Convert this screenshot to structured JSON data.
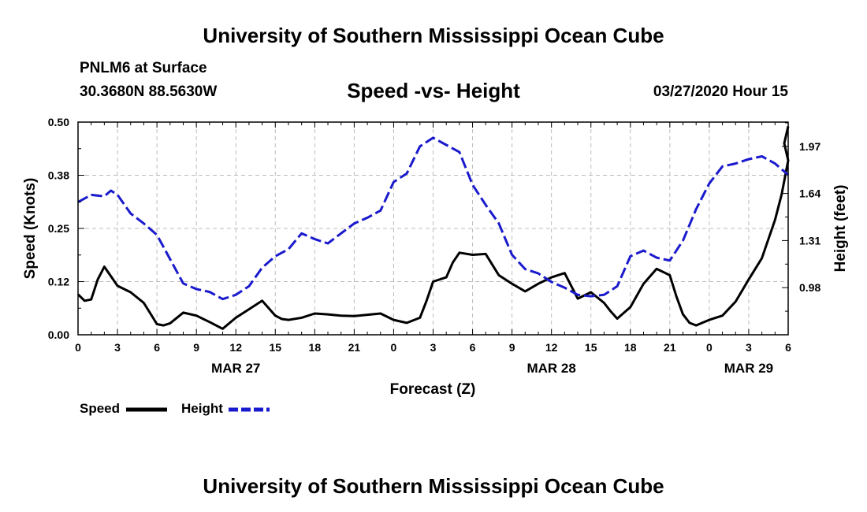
{
  "header": {
    "title_top": "University of Southern Mississippi Ocean Cube",
    "station": "PNLM6 at Surface",
    "coords": "30.3680N 88.5630W",
    "chart_title": "Speed -vs- Height",
    "datetime": "03/27/2020 Hour 15",
    "title_bottom": "University of Southern Mississippi Ocean Cube"
  },
  "colors": {
    "speed": "#000000",
    "height": "#1a1acd",
    "grid": "#bbbbbb"
  },
  "chart_data": {
    "type": "line",
    "title": "Speed -vs- Height",
    "xlabel": "Forecast (Z)",
    "ylabel": "Speed (Knots)",
    "ylabel_right": "Height (feet)",
    "xlim": [
      0,
      54
    ],
    "ylim": [
      0,
      0.5
    ],
    "ylim_right": [
      0.65,
      2.14
    ],
    "x_ticks": [
      0,
      3,
      6,
      9,
      12,
      15,
      18,
      21,
      24,
      27,
      30,
      33,
      36,
      39,
      42,
      45,
      48,
      51,
      54
    ],
    "x_tick_labels": [
      "0",
      "3",
      "6",
      "9",
      "12",
      "15",
      "18",
      "21",
      "0",
      "3",
      "6",
      "9",
      "12",
      "15",
      "18",
      "21",
      "0",
      "3",
      "6"
    ],
    "day_labels": [
      {
        "x": 12,
        "label": "MAR 27"
      },
      {
        "x": 36,
        "label": "MAR 28"
      },
      {
        "x": 51,
        "label": "MAR 29"
      }
    ],
    "y_ticks": [
      0.0,
      0.125,
      0.25,
      0.375,
      0.5
    ],
    "y_tick_labels": [
      "0.00",
      "0.12",
      "0.25",
      "0.38",
      "0.50"
    ],
    "y_ticks_right": [
      0.98,
      1.31,
      1.64,
      1.97
    ],
    "y_tick_labels_right": [
      "0.98",
      "1.31",
      "1.64",
      "1.97"
    ],
    "grid": true,
    "legend": {
      "position": "bottom-left",
      "entries": [
        {
          "name": "Speed"
        },
        {
          "name": "Height"
        }
      ]
    },
    "series": [
      {
        "name": "Speed",
        "axis": "left",
        "style": "solid",
        "x": [
          0,
          0.5,
          1,
          1.5,
          2,
          3,
          4,
          5,
          5.5,
          6,
          6.5,
          7,
          8,
          9,
          10,
          11,
          12,
          13,
          14,
          15,
          15.5,
          16,
          17,
          18,
          19,
          20,
          21,
          22,
          23,
          24,
          25,
          26,
          26.5,
          27,
          28,
          28.5,
          29,
          30,
          31,
          32,
          33,
          34,
          35,
          36,
          37,
          38,
          39,
          40,
          40.5,
          41,
          42,
          43,
          44,
          45,
          45.5,
          46,
          46.5,
          47,
          48,
          49,
          50,
          51,
          52,
          53,
          53.5,
          54
        ],
        "values": [
          0.095,
          0.08,
          0.083,
          0.13,
          0.16,
          0.115,
          0.1,
          0.075,
          0.05,
          0.025,
          0.022,
          0.027,
          0.052,
          0.045,
          0.03,
          0.014,
          0.04,
          0.06,
          0.08,
          0.045,
          0.037,
          0.035,
          0.04,
          0.05,
          0.048,
          0.045,
          0.044,
          0.047,
          0.05,
          0.035,
          0.028,
          0.04,
          0.08,
          0.125,
          0.135,
          0.17,
          0.193,
          0.188,
          0.19,
          0.14,
          0.12,
          0.102,
          0.12,
          0.135,
          0.145,
          0.085,
          0.1,
          0.075,
          0.055,
          0.038,
          0.065,
          0.12,
          0.155,
          0.14,
          0.09,
          0.048,
          0.028,
          0.022,
          0.035,
          0.045,
          0.078,
          0.13,
          0.18,
          0.27,
          0.33,
          0.41
        ],
        "extra_tail": {
          "x": [
            54,
            54
          ],
          "values": [
            0.45,
            0.49
          ]
        }
      },
      {
        "name": "Height",
        "axis": "right",
        "style": "dashed",
        "x": [
          0,
          1,
          2,
          2.5,
          3,
          4,
          5,
          6,
          7,
          8,
          9,
          10,
          11,
          12,
          13,
          14,
          15,
          16,
          17,
          18,
          19,
          20,
          21,
          22,
          23,
          24,
          25,
          26,
          27,
          28,
          29,
          30,
          31,
          32,
          33,
          34,
          35,
          36,
          37,
          38,
          39,
          40,
          41,
          42,
          43,
          44,
          45,
          46,
          47,
          48,
          49,
          50,
          51,
          52,
          53,
          54
        ],
        "values": [
          1.58,
          1.63,
          1.62,
          1.66,
          1.63,
          1.5,
          1.43,
          1.35,
          1.18,
          1.01,
          0.97,
          0.95,
          0.9,
          0.93,
          0.99,
          1.12,
          1.2,
          1.25,
          1.36,
          1.32,
          1.29,
          1.36,
          1.43,
          1.47,
          1.52,
          1.72,
          1.78,
          1.97,
          2.03,
          1.98,
          1.93,
          1.7,
          1.56,
          1.43,
          1.21,
          1.11,
          1.08,
          1.02,
          0.98,
          0.93,
          0.92,
          0.93,
          0.99,
          1.2,
          1.24,
          1.19,
          1.17,
          1.31,
          1.53,
          1.71,
          1.83,
          1.85,
          1.88,
          1.9,
          1.85,
          1.77
        ]
      }
    ]
  }
}
